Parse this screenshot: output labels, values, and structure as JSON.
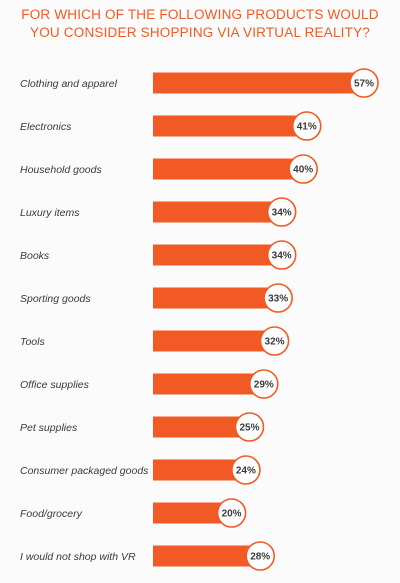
{
  "chart_data": {
    "type": "bar",
    "orientation": "horizontal",
    "title_lines": [
      "FOR WHICH OF THE FOLLOWING PRODUCTS WOULD",
      "YOU CONSIDER SHOPPING VIA VIRTUAL REALITY?"
    ],
    "categories": [
      "Clothing and apparel",
      "Electronics",
      "Household goods",
      "Luxury items",
      "Books",
      "Sporting goods",
      "Tools",
      "Office supplies",
      "Pet supplies",
      "Consumer packaged goods",
      "Food/grocery",
      "I would not shop with VR"
    ],
    "values": [
      57,
      41,
      40,
      34,
      34,
      33,
      32,
      29,
      25,
      24,
      20,
      28
    ],
    "value_labels": [
      "57%",
      "41%",
      "40%",
      "34%",
      "34%",
      "33%",
      "32%",
      "29%",
      "25%",
      "24%",
      "20%",
      "28%"
    ],
    "unit": "%",
    "bar_color": "#f15a24",
    "badge_border_color": "#f15a24",
    "grid": false,
    "legend": "none"
  }
}
